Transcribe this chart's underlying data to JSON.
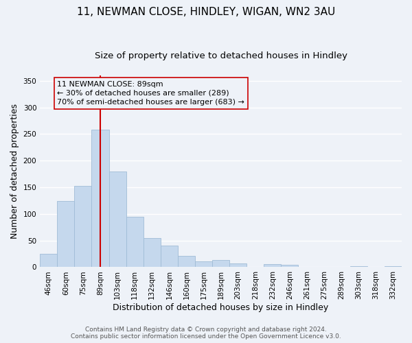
{
  "title": "11, NEWMAN CLOSE, HINDLEY, WIGAN, WN2 3AU",
  "subtitle": "Size of property relative to detached houses in Hindley",
  "xlabel": "Distribution of detached houses by size in Hindley",
  "ylabel": "Number of detached properties",
  "categories": [
    "46sqm",
    "60sqm",
    "75sqm",
    "89sqm",
    "103sqm",
    "118sqm",
    "132sqm",
    "146sqm",
    "160sqm",
    "175sqm",
    "189sqm",
    "203sqm",
    "218sqm",
    "232sqm",
    "246sqm",
    "261sqm",
    "275sqm",
    "289sqm",
    "303sqm",
    "318sqm",
    "332sqm"
  ],
  "values": [
    25,
    124,
    153,
    258,
    180,
    95,
    55,
    40,
    21,
    11,
    13,
    7,
    0,
    6,
    5,
    0,
    0,
    0,
    2,
    0,
    2
  ],
  "bar_color": "#c5d8ed",
  "bar_edge_color": "#a0bcd6",
  "vline_x_idx": 3,
  "vline_color": "#cc0000",
  "annotation_title": "11 NEWMAN CLOSE: 89sqm",
  "annotation_line1": "← 30% of detached houses are smaller (289)",
  "annotation_line2": "70% of semi-detached houses are larger (683) →",
  "annotation_box_color": "#cc0000",
  "footer_line1": "Contains HM Land Registry data © Crown copyright and database right 2024.",
  "footer_line2": "Contains public sector information licensed under the Open Government Licence v3.0.",
  "ylim": [
    0,
    360
  ],
  "yticks": [
    0,
    50,
    100,
    150,
    200,
    250,
    300,
    350
  ],
  "background_color": "#eef2f8",
  "grid_color": "#ffffff",
  "title_fontsize": 11,
  "subtitle_fontsize": 9.5,
  "axis_label_fontsize": 9,
  "tick_fontsize": 7.5,
  "footer_fontsize": 6.5,
  "annotation_fontsize": 8
}
